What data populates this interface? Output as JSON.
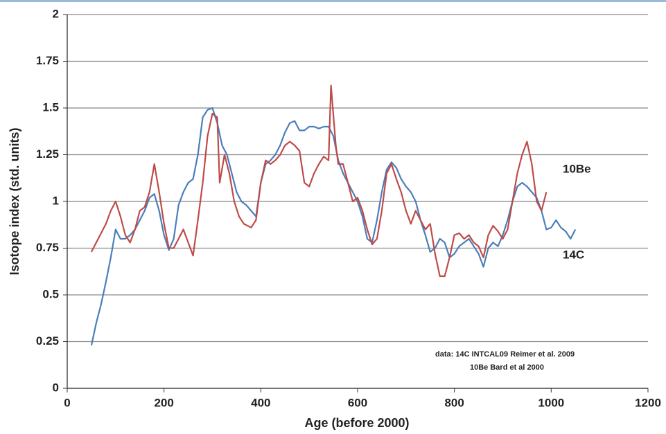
{
  "chart_data": {
    "type": "line",
    "xlabel": "Age (before 2000)",
    "ylabel": "Isotope index (std. units)",
    "xlim": [
      0,
      1200
    ],
    "xticks": [
      0,
      200,
      400,
      600,
      800,
      1000,
      1200
    ],
    "ylim": [
      0,
      2
    ],
    "yticks": [
      0,
      0.25,
      0.5,
      0.75,
      1,
      1.25,
      1.5,
      1.75,
      2
    ],
    "grid": true,
    "annotations": [
      "data:  14C  INTCAL09 Reimer et al. 2009",
      "10Be  Bard et al 2000"
    ],
    "series": [
      {
        "name": "14C",
        "color": "#4a7ebb",
        "x": [
          50,
          60,
          70,
          80,
          90,
          100,
          110,
          120,
          130,
          140,
          150,
          160,
          170,
          180,
          190,
          200,
          210,
          220,
          230,
          240,
          250,
          260,
          270,
          280,
          290,
          300,
          310,
          320,
          330,
          340,
          350,
          360,
          370,
          380,
          390,
          400,
          410,
          420,
          430,
          440,
          450,
          460,
          470,
          480,
          490,
          500,
          510,
          520,
          530,
          540,
          550,
          560,
          570,
          580,
          590,
          600,
          610,
          620,
          630,
          640,
          650,
          660,
          670,
          680,
          690,
          700,
          710,
          720,
          730,
          740,
          750,
          760,
          770,
          780,
          790,
          800,
          810,
          820,
          830,
          840,
          850,
          860,
          870,
          880,
          890,
          900,
          910,
          920,
          930,
          940,
          950,
          960,
          970,
          980,
          990,
          1000,
          1010,
          1020,
          1030,
          1040,
          1050
        ],
        "values": [
          0.23,
          0.35,
          0.45,
          0.57,
          0.7,
          0.85,
          0.8,
          0.8,
          0.82,
          0.85,
          0.9,
          0.95,
          1.02,
          1.04,
          0.95,
          0.82,
          0.74,
          0.8,
          0.98,
          1.05,
          1.1,
          1.12,
          1.25,
          1.45,
          1.49,
          1.5,
          1.42,
          1.3,
          1.25,
          1.15,
          1.05,
          1.0,
          0.98,
          0.95,
          0.92,
          1.1,
          1.2,
          1.22,
          1.25,
          1.3,
          1.37,
          1.42,
          1.43,
          1.38,
          1.38,
          1.4,
          1.4,
          1.39,
          1.4,
          1.4,
          1.35,
          1.22,
          1.15,
          1.1,
          1.05,
          1.0,
          0.92,
          0.8,
          0.78,
          0.9,
          1.05,
          1.17,
          1.21,
          1.18,
          1.12,
          1.08,
          1.05,
          1.0,
          0.9,
          0.82,
          0.73,
          0.75,
          0.8,
          0.78,
          0.7,
          0.72,
          0.76,
          0.78,
          0.8,
          0.76,
          0.72,
          0.65,
          0.75,
          0.78,
          0.76,
          0.82,
          0.9,
          1.0,
          1.08,
          1.1,
          1.08,
          1.05,
          1.02,
          0.95,
          0.85,
          0.86,
          0.9,
          0.86,
          0.84,
          0.8,
          0.85
        ]
      },
      {
        "name": "10Be",
        "color": "#be4b48",
        "x": [
          50,
          60,
          70,
          80,
          90,
          100,
          110,
          120,
          130,
          140,
          150,
          160,
          170,
          180,
          190,
          200,
          210,
          220,
          230,
          240,
          250,
          260,
          270,
          280,
          290,
          300,
          310,
          315,
          325,
          335,
          345,
          355,
          365,
          380,
          390,
          400,
          410,
          420,
          430,
          440,
          450,
          460,
          470,
          480,
          490,
          500,
          510,
          520,
          530,
          540,
          545,
          555,
          560,
          570,
          580,
          590,
          600,
          610,
          620,
          630,
          640,
          650,
          660,
          670,
          680,
          690,
          700,
          710,
          720,
          730,
          740,
          750,
          760,
          770,
          780,
          790,
          800,
          810,
          820,
          830,
          840,
          850,
          860,
          870,
          880,
          890,
          900,
          910,
          920,
          930,
          940,
          950,
          960,
          970,
          980,
          990
        ],
        "values": [
          0.73,
          0.78,
          0.83,
          0.88,
          0.95,
          1.0,
          0.92,
          0.82,
          0.78,
          0.85,
          0.95,
          0.97,
          1.05,
          1.2,
          1.05,
          0.88,
          0.75,
          0.75,
          0.8,
          0.85,
          0.78,
          0.71,
          0.9,
          1.1,
          1.35,
          1.47,
          1.45,
          1.1,
          1.25,
          1.15,
          1.0,
          0.92,
          0.88,
          0.86,
          0.9,
          1.1,
          1.22,
          1.2,
          1.22,
          1.25,
          1.3,
          1.32,
          1.3,
          1.27,
          1.1,
          1.08,
          1.15,
          1.2,
          1.24,
          1.22,
          1.62,
          1.3,
          1.2,
          1.2,
          1.1,
          1.0,
          1.02,
          0.95,
          0.85,
          0.77,
          0.8,
          0.95,
          1.15,
          1.2,
          1.12,
          1.05,
          0.95,
          0.88,
          0.95,
          0.9,
          0.85,
          0.88,
          0.72,
          0.6,
          0.6,
          0.7,
          0.82,
          0.83,
          0.8,
          0.82,
          0.78,
          0.76,
          0.7,
          0.82,
          0.87,
          0.84,
          0.8,
          0.85,
          1.0,
          1.15,
          1.25,
          1.32,
          1.2,
          1.0,
          0.95,
          1.05
        ]
      }
    ]
  }
}
